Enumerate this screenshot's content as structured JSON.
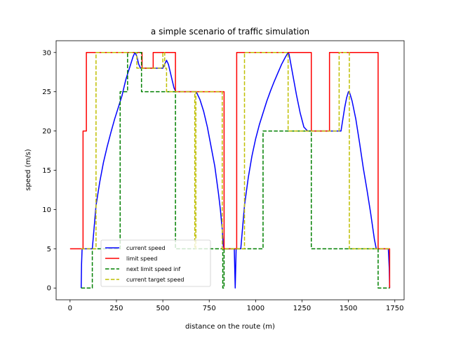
{
  "chart_data": {
    "type": "line",
    "title": "a simple scenario of traffic simulation",
    "xlabel": "distance on the route (m)",
    "ylabel": "speed (m/s)",
    "xlim": [
      -75,
      1800
    ],
    "ylim": [
      -1.5,
      31.5
    ],
    "xticks": [
      0,
      250,
      500,
      750,
      1000,
      1250,
      1500,
      1750
    ],
    "yticks": [
      0,
      5,
      10,
      15,
      20,
      25,
      30
    ],
    "grid": false,
    "legend_position": "lower-left",
    "series": [
      {
        "name": "current speed",
        "color": "#0000ff",
        "style": "solid",
        "x": [
          60,
          62,
          65,
          70,
          80,
          90,
          100,
          120,
          140,
          160,
          180,
          200,
          220,
          240,
          260,
          280,
          300,
          320,
          340,
          350,
          360,
          370,
          380,
          385,
          390,
          400,
          420,
          440,
          460,
          480,
          500,
          510,
          520,
          530,
          540,
          550,
          560,
          570,
          580,
          600,
          620,
          640,
          660,
          680,
          700,
          720,
          740,
          760,
          780,
          800,
          810,
          820,
          825,
          830,
          835,
          840,
          850,
          860,
          870,
          880,
          885,
          890,
          895,
          900,
          905,
          910,
          920,
          940,
          960,
          980,
          1000,
          1020,
          1040,
          1060,
          1080,
          1100,
          1120,
          1140,
          1160,
          1175,
          1180,
          1190,
          1200,
          1210,
          1220,
          1240,
          1260,
          1280,
          1300,
          1320,
          1340,
          1360,
          1380,
          1400,
          1420,
          1440,
          1460,
          1470,
          1480,
          1490,
          1500,
          1505,
          1510,
          1520,
          1540,
          1560,
          1580,
          1600,
          1620,
          1640,
          1650,
          1655,
          1660,
          1670,
          1680,
          1690,
          1700,
          1710,
          1715,
          1720,
          1722
        ],
        "y": [
          0,
          3,
          5,
          5,
          5,
          5,
          5,
          5,
          10.5,
          13.5,
          16,
          18,
          19.8,
          21.5,
          23,
          24.5,
          26.5,
          28,
          29.5,
          30,
          29.5,
          28.5,
          28,
          28,
          28,
          28,
          28,
          28,
          28,
          28,
          28,
          28.5,
          29,
          28.5,
          27.5,
          26.5,
          25.5,
          25,
          25,
          25,
          25,
          25,
          25,
          25,
          24,
          22.5,
          20.5,
          18,
          15.5,
          12,
          10,
          7.5,
          5.5,
          5,
          5,
          5,
          5,
          5,
          5,
          5,
          5,
          0,
          5,
          5,
          5,
          5,
          5,
          10.5,
          14,
          16.8,
          19,
          20.8,
          22.3,
          23.8,
          25.1,
          26.3,
          27.4,
          28.5,
          29.4,
          30,
          29.8,
          28.5,
          27.2,
          25.9,
          24.6,
          22.3,
          20.5,
          20,
          20,
          20,
          20,
          20,
          20,
          20,
          20,
          20,
          20,
          21.5,
          23,
          24.2,
          25,
          25,
          24.6,
          23.8,
          21.5,
          18.5,
          15.3,
          12.5,
          9.5,
          6.2,
          5,
          5,
          5,
          5,
          5,
          5,
          5,
          5,
          5,
          2.5,
          0
        ]
      },
      {
        "name": "limit speed",
        "color": "#ff0000",
        "style": "solid",
        "x": [
          0,
          70,
          70,
          88,
          88,
          388,
          388,
          448,
          448,
          510,
          510,
          568,
          568,
          830,
          830,
          898,
          898,
          1300,
          1300,
          1398,
          1398,
          1660,
          1660,
          1722,
          1722
        ],
        "y": [
          5,
          5,
          20,
          20,
          30,
          30,
          28,
          28,
          30,
          30,
          30,
          30,
          25,
          25,
          5,
          5,
          30,
          30,
          20,
          20,
          30,
          30,
          5,
          5,
          0
        ]
      },
      {
        "name": "next limit speed inf",
        "color": "#008000",
        "style": "dashed",
        "x": [
          60,
          120,
          120,
          270,
          270,
          310,
          310,
          385,
          385,
          568,
          568,
          823,
          823,
          830,
          830,
          895,
          895,
          1040,
          1040,
          1300,
          1300,
          1660,
          1660,
          1722,
          1722
        ],
        "y": [
          0,
          0,
          5,
          5,
          25,
          25,
          30,
          30,
          25,
          25,
          5,
          5,
          0,
          0,
          5,
          5,
          5,
          5,
          20,
          20,
          5,
          5,
          0,
          0,
          0
        ]
      },
      {
        "name": "current target speed",
        "color": "#bfbf00",
        "style": "dashed",
        "x": [
          60,
          88,
          88,
          140,
          140,
          335,
          335,
          360,
          360,
          500,
          500,
          510,
          510,
          520,
          520,
          570,
          570,
          672,
          672,
          678,
          678,
          820,
          820,
          830,
          830,
          940,
          940,
          950,
          950,
          1175,
          1175,
          1180,
          1180,
          1290,
          1290,
          1450,
          1450,
          1505,
          1505,
          1660,
          1660,
          1722
        ],
        "y": [
          5,
          5,
          5,
          5,
          30,
          30,
          30,
          30,
          28,
          28,
          30,
          30,
          28,
          28,
          25,
          25,
          25,
          25,
          5,
          5,
          25,
          25,
          5,
          5,
          5,
          5,
          30,
          30,
          30,
          30,
          20,
          20,
          20,
          20,
          20,
          20,
          30,
          30,
          5,
          5,
          5,
          5
        ]
      }
    ]
  }
}
